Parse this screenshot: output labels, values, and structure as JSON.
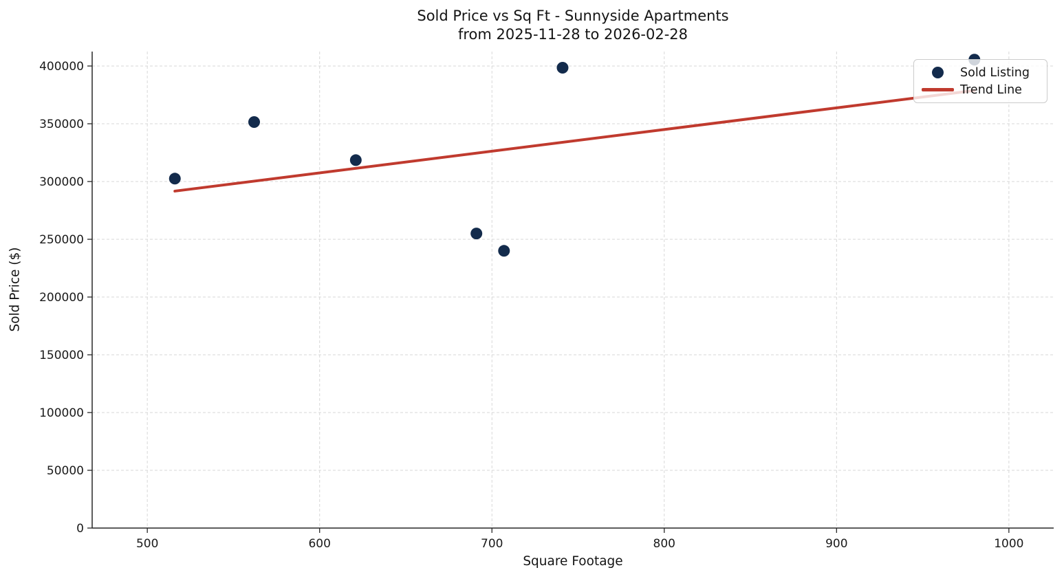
{
  "chart_data": {
    "type": "scatter",
    "title_line1": "Sold Price vs Sq Ft - Sunnyside Apartments",
    "title_line2": "from 2025-11-28 to 2026-02-28",
    "xlabel": "Square Footage",
    "ylabel": "Sold Price ($)",
    "xlim": [
      468,
      1026
    ],
    "ylim": [
      0,
      412500
    ],
    "x_ticks": [
      500,
      600,
      700,
      800,
      900,
      1000
    ],
    "y_ticks": [
      0,
      50000,
      100000,
      150000,
      200000,
      250000,
      300000,
      350000,
      400000
    ],
    "grid": true,
    "legend": {
      "position": "upper right",
      "entries": [
        {
          "label": "Sold Listing",
          "marker": "dot"
        },
        {
          "label": "Trend Line",
          "marker": "line"
        }
      ]
    },
    "series": [
      {
        "name": "Sold Listing",
        "type": "scatter",
        "color": "#132b4c",
        "points": [
          [
            516,
            302500
          ],
          [
            562,
            351500
          ],
          [
            621,
            318500
          ],
          [
            691,
            255000
          ],
          [
            707,
            240000
          ],
          [
            741,
            398500
          ],
          [
            980,
            405500
          ]
        ]
      },
      {
        "name": "Trend Line",
        "type": "line",
        "color": "#c03a2e",
        "points": [
          [
            516,
            291700
          ],
          [
            980,
            378800
          ]
        ]
      }
    ],
    "colors": {
      "grid": "#d7d7d7",
      "spine": "#262626",
      "text": "#1a1a1a"
    }
  }
}
